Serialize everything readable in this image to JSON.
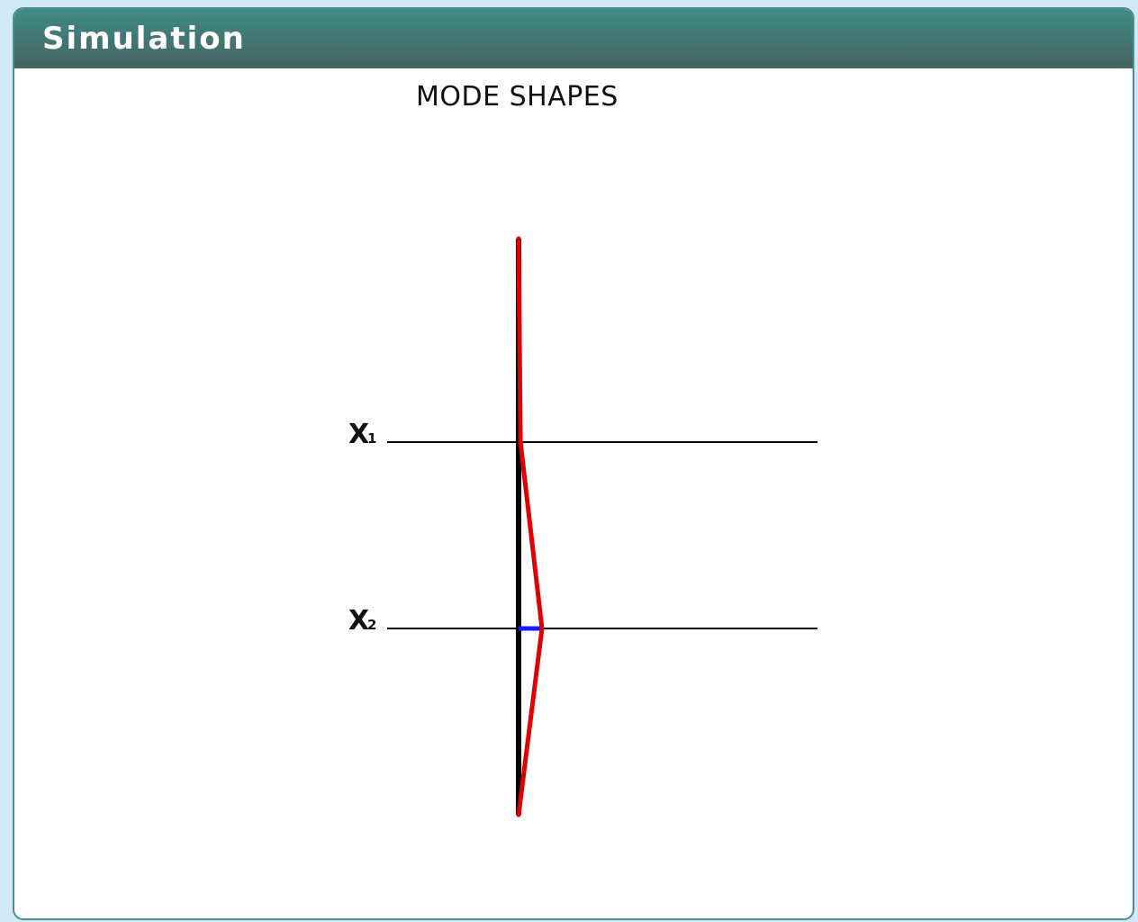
{
  "panel": {
    "title": "Simulation"
  },
  "figure": {
    "title": "MODE SHAPES",
    "levels": [
      {
        "label_main": "X",
        "label_sub": "1",
        "displacement": 0.08
      },
      {
        "label_main": "X",
        "label_sub": "2",
        "displacement": 1.0
      }
    ]
  },
  "colors": {
    "header_top": "#3f8c88",
    "header_bottom": "#46625f",
    "mode_shape": "#e00000",
    "displacement_marker": "#1a1aff",
    "structure": "#000000"
  }
}
